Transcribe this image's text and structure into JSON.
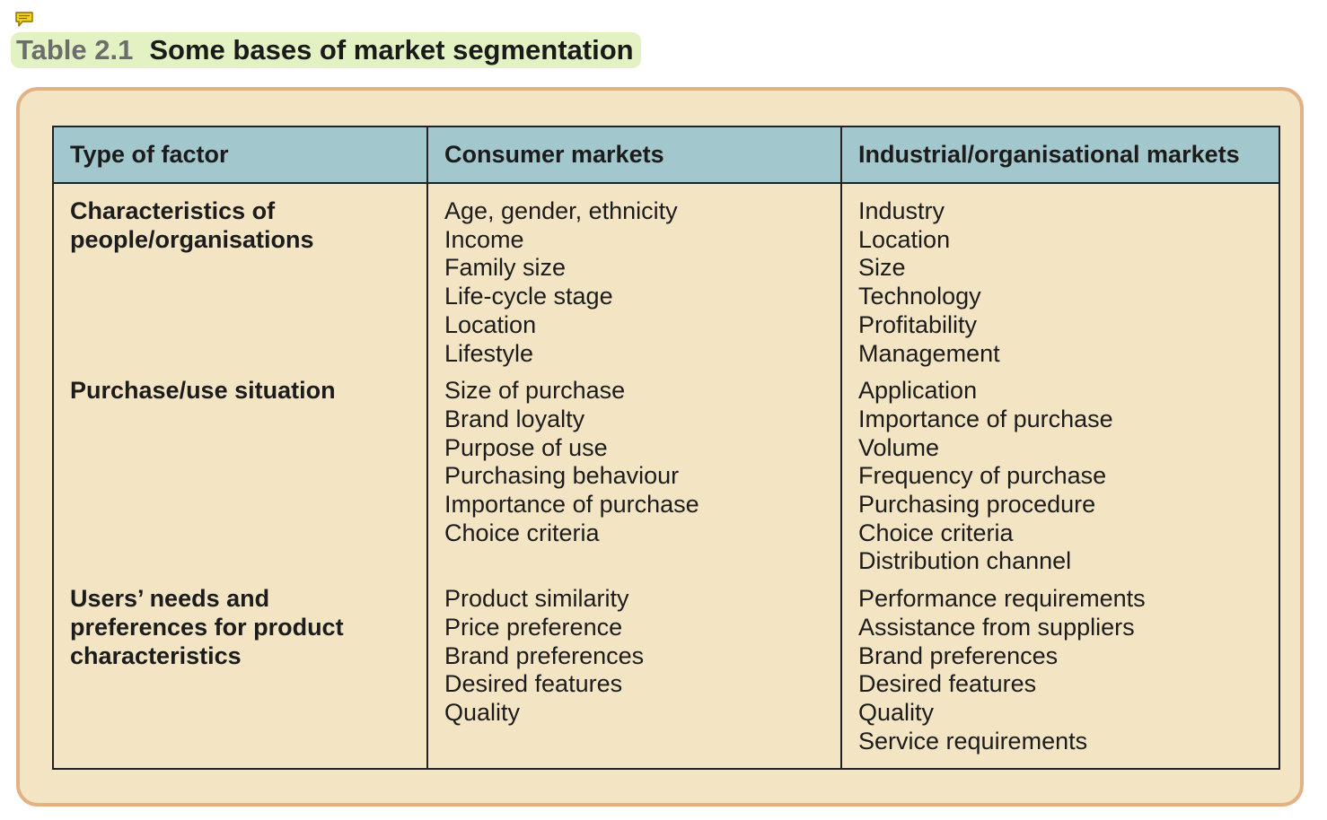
{
  "title": {
    "label": "Table 2.1",
    "text": "Some bases of market segmentation"
  },
  "table": {
    "headers": [
      "Type of factor",
      "Consumer markets",
      "Industrial/organisational markets"
    ],
    "rows": [
      {
        "factor": [
          "Characteristics of",
          "people/organisations"
        ],
        "consumer": [
          "Age, gender, ethnicity",
          "Income",
          "Family size",
          "Life-cycle stage",
          "Location",
          "Lifestyle"
        ],
        "industrial": [
          "Industry",
          "Location",
          "Size",
          "Technology",
          "Profitability",
          "Management"
        ]
      },
      {
        "factor": [
          "Purchase/use situation"
        ],
        "consumer": [
          "Size of purchase",
          "Brand loyalty",
          "Purpose of use",
          "Purchasing behaviour",
          "Importance of purchase",
          "Choice criteria"
        ],
        "industrial": [
          "Application",
          "Importance of purchase",
          "Volume",
          "Frequency of purchase",
          "Purchasing procedure",
          "Choice criteria",
          "Distribution channel"
        ]
      },
      {
        "factor": [
          "Users’ needs and",
          "preferences for product",
          "characteristics"
        ],
        "consumer": [
          "Product similarity",
          "Price preference",
          "Brand preferences",
          "Desired features",
          "Quality"
        ],
        "industrial": [
          "Performance requirements",
          "Assistance from suppliers",
          "Brand preferences",
          "Desired features",
          "Quality",
          "Service requirements"
        ]
      }
    ]
  },
  "icons": {
    "comment": "comment-icon"
  },
  "colors": {
    "header_bg": "#a2c7cc",
    "body_bg": "#f3e4c3",
    "frame_border": "#e2b184",
    "title_highlight": "#e3f2c2"
  }
}
